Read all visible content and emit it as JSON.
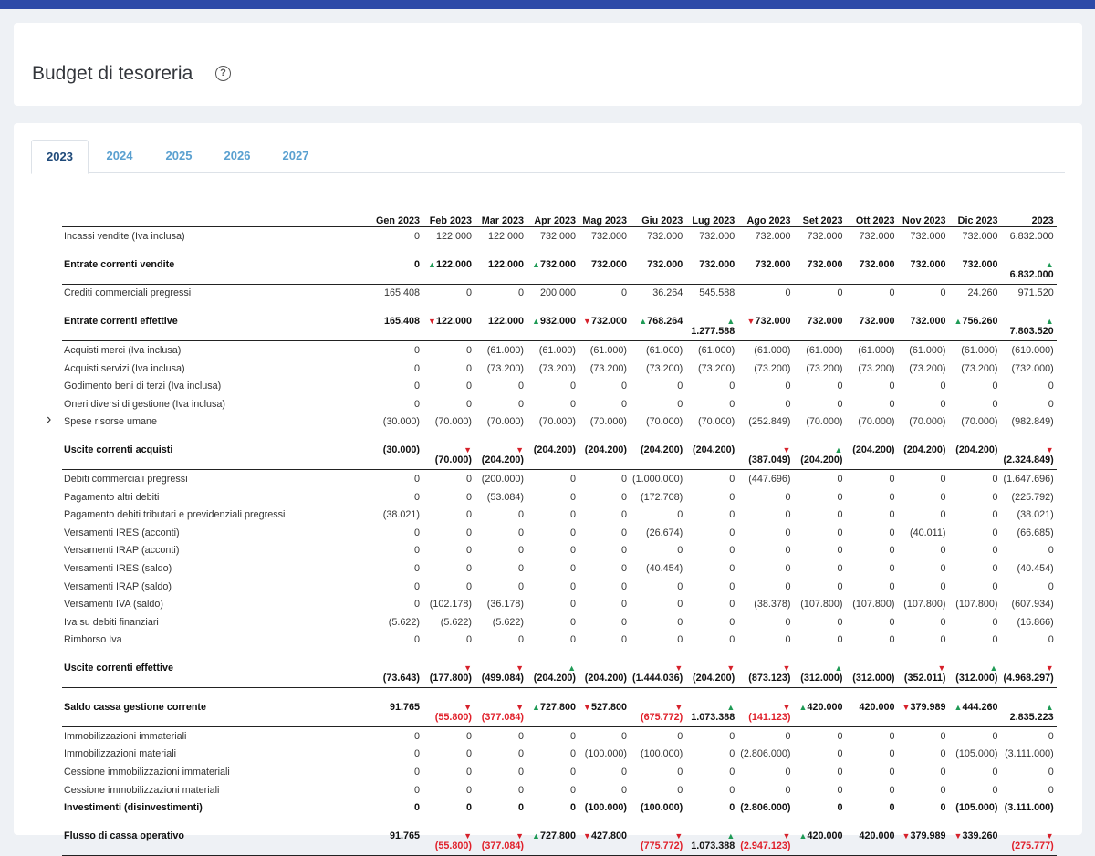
{
  "page_title": "Budget di tesoreria",
  "help_icon": "question-circle-icon",
  "tabs": [
    "2023",
    "2024",
    "2025",
    "2026",
    "2027"
  ],
  "active_tab": "2023",
  "columns": [
    "Gen 2023",
    "Feb 2023",
    "Mar 2023",
    "Apr 2023",
    "Mag 2023",
    "Giu 2023",
    "Lug 2023",
    "Ago 2023",
    "Set 2023",
    "Ott 2023",
    "Nov 2023",
    "Dic 2023",
    "2023"
  ],
  "rows": [
    {
      "label": "Incassi vendite (Iva inclusa)",
      "values": [
        "0",
        "122.000",
        "122.000",
        "732.000",
        "732.000",
        "732.000",
        "732.000",
        "732.000",
        "732.000",
        "732.000",
        "732.000",
        "732.000",
        "6.832.000"
      ]
    },
    {
      "label": "Entrate correnti vendite",
      "total": true,
      "values": [
        "0",
        "122.000",
        "122.000",
        "732.000",
        "732.000",
        "732.000",
        "732.000",
        "732.000",
        "732.000",
        "732.000",
        "732.000",
        "732.000",
        "6.832.000"
      ],
      "trend": [
        "",
        "up",
        "",
        "up",
        "",
        "",
        "",
        "",
        "",
        "",
        "",
        "",
        "up"
      ],
      "stack": [
        false,
        false,
        false,
        false,
        false,
        false,
        false,
        false,
        false,
        false,
        false,
        false,
        true
      ]
    },
    {
      "label": "Crediti commerciali pregressi",
      "values": [
        "165.408",
        "0",
        "0",
        "200.000",
        "0",
        "36.264",
        "545.588",
        "0",
        "0",
        "0",
        "0",
        "24.260",
        "971.520"
      ]
    },
    {
      "label": "Entrate correnti effettive",
      "total": true,
      "values": [
        "165.408",
        "122.000",
        "122.000",
        "932.000",
        "732.000",
        "768.264",
        "1.277.588",
        "732.000",
        "732.000",
        "732.000",
        "732.000",
        "756.260",
        "7.803.520"
      ],
      "trend": [
        "",
        "dn",
        "",
        "up",
        "dn",
        "up",
        "up",
        "dn",
        "",
        "",
        "",
        "up",
        "up"
      ],
      "stack": [
        false,
        false,
        false,
        false,
        false,
        false,
        true,
        false,
        false,
        false,
        false,
        false,
        true
      ]
    },
    {
      "label": "Acquisti merci (Iva inclusa)",
      "values": [
        "0",
        "0",
        "(61.000)",
        "(61.000)",
        "(61.000)",
        "(61.000)",
        "(61.000)",
        "(61.000)",
        "(61.000)",
        "(61.000)",
        "(61.000)",
        "(61.000)",
        "(610.000)"
      ]
    },
    {
      "label": "Acquisti servizi (Iva inclusa)",
      "values": [
        "0",
        "0",
        "(73.200)",
        "(73.200)",
        "(73.200)",
        "(73.200)",
        "(73.200)",
        "(73.200)",
        "(73.200)",
        "(73.200)",
        "(73.200)",
        "(73.200)",
        "(732.000)"
      ]
    },
    {
      "label": "Godimento beni di terzi (Iva inclusa)",
      "values": [
        "0",
        "0",
        "0",
        "0",
        "0",
        "0",
        "0",
        "0",
        "0",
        "0",
        "0",
        "0",
        "0"
      ]
    },
    {
      "label": "Oneri diversi di gestione (Iva inclusa)",
      "values": [
        "0",
        "0",
        "0",
        "0",
        "0",
        "0",
        "0",
        "0",
        "0",
        "0",
        "0",
        "0",
        "0"
      ]
    },
    {
      "label": "Spese risorse umane",
      "expandable": true,
      "values": [
        "(30.000)",
        "(70.000)",
        "(70.000)",
        "(70.000)",
        "(70.000)",
        "(70.000)",
        "(70.000)",
        "(252.849)",
        "(70.000)",
        "(70.000)",
        "(70.000)",
        "(70.000)",
        "(982.849)"
      ]
    },
    {
      "label": "Uscite correnti acquisti",
      "total": true,
      "values": [
        "(30.000)",
        "(70.000)",
        "(204.200)",
        "(204.200)",
        "(204.200)",
        "(204.200)",
        "(204.200)",
        "(387.049)",
        "(204.200)",
        "(204.200)",
        "(204.200)",
        "(204.200)",
        "(2.324.849)"
      ],
      "trend": [
        "",
        "dn",
        "dn",
        "",
        "",
        "",
        "",
        "dn",
        "up",
        "",
        "",
        "",
        "dn"
      ],
      "stack": [
        false,
        true,
        true,
        false,
        false,
        false,
        false,
        true,
        true,
        false,
        false,
        false,
        true
      ]
    },
    {
      "label": "Debiti commerciali pregressi",
      "values": [
        "0",
        "0",
        "(200.000)",
        "0",
        "0",
        "(1.000.000)",
        "0",
        "(447.696)",
        "0",
        "0",
        "0",
        "0",
        "(1.647.696)"
      ]
    },
    {
      "label": "Pagamento altri debiti",
      "values": [
        "0",
        "0",
        "(53.084)",
        "0",
        "0",
        "(172.708)",
        "0",
        "0",
        "0",
        "0",
        "0",
        "0",
        "(225.792)"
      ]
    },
    {
      "label": "Pagamento debiti tributari e previdenziali pregressi",
      "values": [
        "(38.021)",
        "0",
        "0",
        "0",
        "0",
        "0",
        "0",
        "0",
        "0",
        "0",
        "0",
        "0",
        "(38.021)"
      ]
    },
    {
      "label": "Versamenti IRES (acconti)",
      "values": [
        "0",
        "0",
        "0",
        "0",
        "0",
        "(26.674)",
        "0",
        "0",
        "0",
        "0",
        "(40.011)",
        "0",
        "(66.685)"
      ]
    },
    {
      "label": "Versamenti IRAP (acconti)",
      "values": [
        "0",
        "0",
        "0",
        "0",
        "0",
        "0",
        "0",
        "0",
        "0",
        "0",
        "0",
        "0",
        "0"
      ]
    },
    {
      "label": "Versamenti IRES (saldo)",
      "values": [
        "0",
        "0",
        "0",
        "0",
        "0",
        "(40.454)",
        "0",
        "0",
        "0",
        "0",
        "0",
        "0",
        "(40.454)"
      ]
    },
    {
      "label": "Versamenti IRAP (saldo)",
      "values": [
        "0",
        "0",
        "0",
        "0",
        "0",
        "0",
        "0",
        "0",
        "0",
        "0",
        "0",
        "0",
        "0"
      ]
    },
    {
      "label": "Versamenti IVA (saldo)",
      "values": [
        "0",
        "(102.178)",
        "(36.178)",
        "0",
        "0",
        "0",
        "0",
        "(38.378)",
        "(107.800)",
        "(107.800)",
        "(107.800)",
        "(107.800)",
        "(607.934)"
      ]
    },
    {
      "label": "Iva su debiti finanziari",
      "values": [
        "(5.622)",
        "(5.622)",
        "(5.622)",
        "0",
        "0",
        "0",
        "0",
        "0",
        "0",
        "0",
        "0",
        "0",
        "(16.866)"
      ]
    },
    {
      "label": "Rimborso Iva",
      "values": [
        "0",
        "0",
        "0",
        "0",
        "0",
        "0",
        "0",
        "0",
        "0",
        "0",
        "0",
        "0",
        "0"
      ]
    },
    {
      "label": "Uscite correnti effettive",
      "total": true,
      "values": [
        "(73.643)",
        "(177.800)",
        "(499.084)",
        "(204.200)",
        "(204.200)",
        "(1.444.036)",
        "(204.200)",
        "(873.123)",
        "(312.000)",
        "(312.000)",
        "(352.011)",
        "(312.000)",
        "(4.968.297)"
      ],
      "trend": [
        "",
        "dn",
        "dn",
        "up",
        "",
        "dn",
        "dn",
        "dn",
        "up",
        "",
        "dn",
        "up",
        "dn"
      ],
      "stack": [
        true,
        true,
        true,
        true,
        true,
        true,
        true,
        true,
        true,
        true,
        true,
        true,
        true
      ]
    },
    {
      "label": "Saldo cassa gestione corrente",
      "total": true,
      "values": [
        "91.765",
        "(55.800)",
        "(377.084)",
        "727.800",
        "527.800",
        "(675.772)",
        "1.073.388",
        "(141.123)",
        "420.000",
        "420.000",
        "379.989",
        "444.260",
        "2.835.223"
      ],
      "trend": [
        "",
        "dn",
        "dn",
        "up",
        "dn",
        "dn",
        "up",
        "dn",
        "up",
        "",
        "dn",
        "up",
        "up"
      ],
      "stack": [
        false,
        true,
        true,
        false,
        false,
        true,
        true,
        true,
        false,
        false,
        false,
        false,
        true
      ],
      "red": [
        false,
        true,
        true,
        false,
        false,
        true,
        false,
        true,
        false,
        false,
        false,
        false,
        false
      ]
    },
    {
      "label": "Immobilizzazioni immateriali",
      "values": [
        "0",
        "0",
        "0",
        "0",
        "0",
        "0",
        "0",
        "0",
        "0",
        "0",
        "0",
        "0",
        "0"
      ]
    },
    {
      "label": "Immobilizzazioni materiali",
      "values": [
        "0",
        "0",
        "0",
        "0",
        "(100.000)",
        "(100.000)",
        "0",
        "(2.806.000)",
        "0",
        "0",
        "0",
        "(105.000)",
        "(3.111.000)"
      ]
    },
    {
      "label": "Cessione immobilizzazioni immateriali",
      "values": [
        "0",
        "0",
        "0",
        "0",
        "0",
        "0",
        "0",
        "0",
        "0",
        "0",
        "0",
        "0",
        "0"
      ]
    },
    {
      "label": "Cessione immobilizzazioni materiali",
      "values": [
        "0",
        "0",
        "0",
        "0",
        "0",
        "0",
        "0",
        "0",
        "0",
        "0",
        "0",
        "0",
        "0"
      ]
    },
    {
      "label": "Investimenti (disinvestimenti)",
      "bold": true,
      "values": [
        "0",
        "0",
        "0",
        "0",
        "(100.000)",
        "(100.000)",
        "0",
        "(2.806.000)",
        "0",
        "0",
        "0",
        "(105.000)",
        "(3.111.000)"
      ]
    },
    {
      "label": "Flusso di cassa operativo",
      "total": true,
      "values": [
        "91.765",
        "(55.800)",
        "(377.084)",
        "727.800",
        "427.800",
        "(775.772)",
        "1.073.388",
        "(2.947.123)",
        "420.000",
        "420.000",
        "379.989",
        "339.260",
        "(275.777)"
      ],
      "trend": [
        "",
        "dn",
        "dn",
        "up",
        "dn",
        "dn",
        "up",
        "dn",
        "up",
        "",
        "dn",
        "dn",
        "dn"
      ],
      "stack": [
        false,
        true,
        true,
        false,
        false,
        true,
        true,
        true,
        false,
        false,
        false,
        false,
        true
      ],
      "red": [
        false,
        true,
        true,
        false,
        false,
        true,
        false,
        true,
        false,
        false,
        false,
        false,
        true
      ]
    }
  ]
}
